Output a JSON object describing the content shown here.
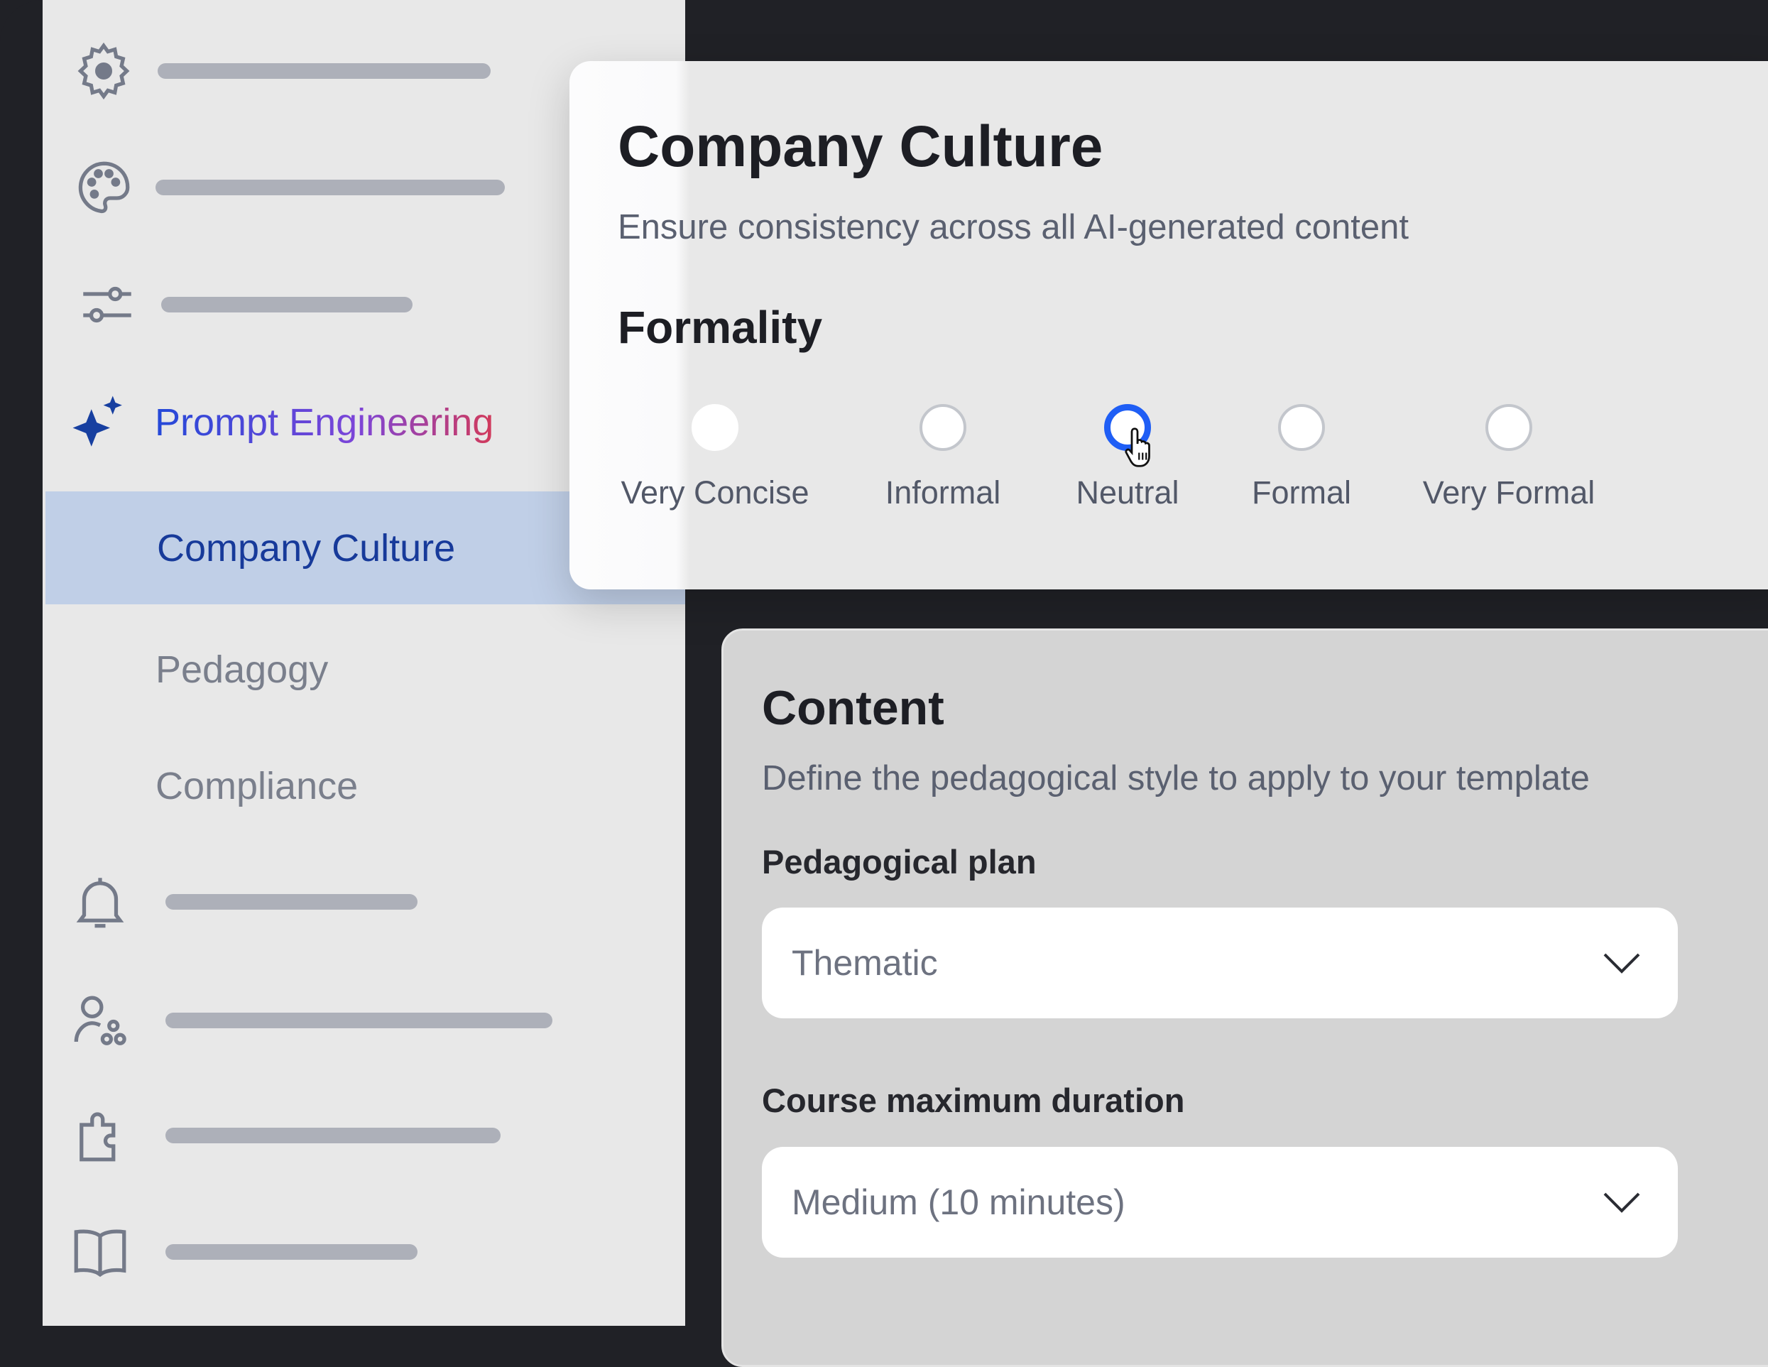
{
  "sidebar": {
    "items": [
      {
        "icon": "gear-icon"
      },
      {
        "icon": "palette-icon"
      },
      {
        "icon": "sliders-icon"
      },
      {
        "icon": "sparkle-icon",
        "label": "Prompt Engineering"
      },
      {
        "label": "Company Culture",
        "selected": true
      },
      {
        "label": "Pedagogy"
      },
      {
        "label": "Compliance"
      },
      {
        "icon": "bell-icon"
      },
      {
        "icon": "users-icon"
      },
      {
        "icon": "puzzle-icon"
      },
      {
        "icon": "book-icon"
      }
    ]
  },
  "culture_card": {
    "title": "Company Culture",
    "subtitle": "Ensure consistency across all AI-generated content",
    "formality": {
      "label": "Formality",
      "options": [
        "Very Concise",
        "Informal",
        "Neutral",
        "Formal",
        "Very Formal"
      ],
      "selected": "Neutral"
    }
  },
  "content_card": {
    "title": "Content",
    "description": "Define the pedagogical style to apply to your template",
    "pedagogical_plan": {
      "label": "Pedagogical plan",
      "value": "Thematic"
    },
    "duration": {
      "label": "Course maximum duration",
      "value": "Medium (10 minutes)"
    }
  },
  "colors": {
    "accent": "#1f5ef5",
    "selected_bg": "#c0cfe7",
    "selected_text": "#173a9a"
  }
}
